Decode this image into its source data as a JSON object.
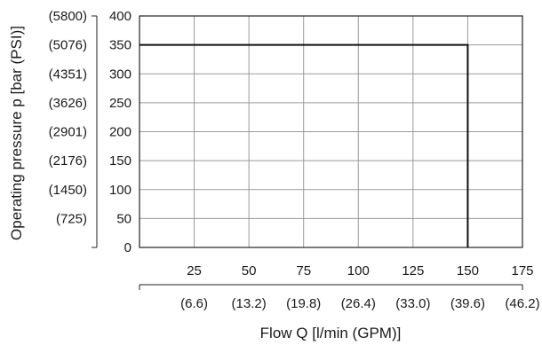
{
  "chart_data": {
    "type": "line",
    "xlabel": "Flow Q [l/min (GPM)]",
    "ylabel": "Operating pressure p [bar (PSI)]",
    "xlim": [
      0,
      175
    ],
    "ylim": [
      0,
      400
    ],
    "grid": true,
    "x_ticks": [
      25,
      50,
      75,
      100,
      125,
      150,
      175
    ],
    "x_ticks_secondary": [
      "(6.6)",
      "(13.2)",
      "(19.8)",
      "(26.4)",
      "(33.0)",
      "(39.6)",
      "(46.2)"
    ],
    "y_ticks": [
      0,
      50,
      100,
      150,
      200,
      250,
      300,
      350,
      400
    ],
    "y_ticks_secondary": [
      "",
      "(725)",
      "(1450)",
      "(2176)",
      "(2901)",
      "(3626)",
      "(4351)",
      "(5076)",
      "(5800)"
    ],
    "series": [
      {
        "x": [
          0,
          150,
          150
        ],
        "y": [
          350,
          350,
          0
        ]
      }
    ]
  }
}
